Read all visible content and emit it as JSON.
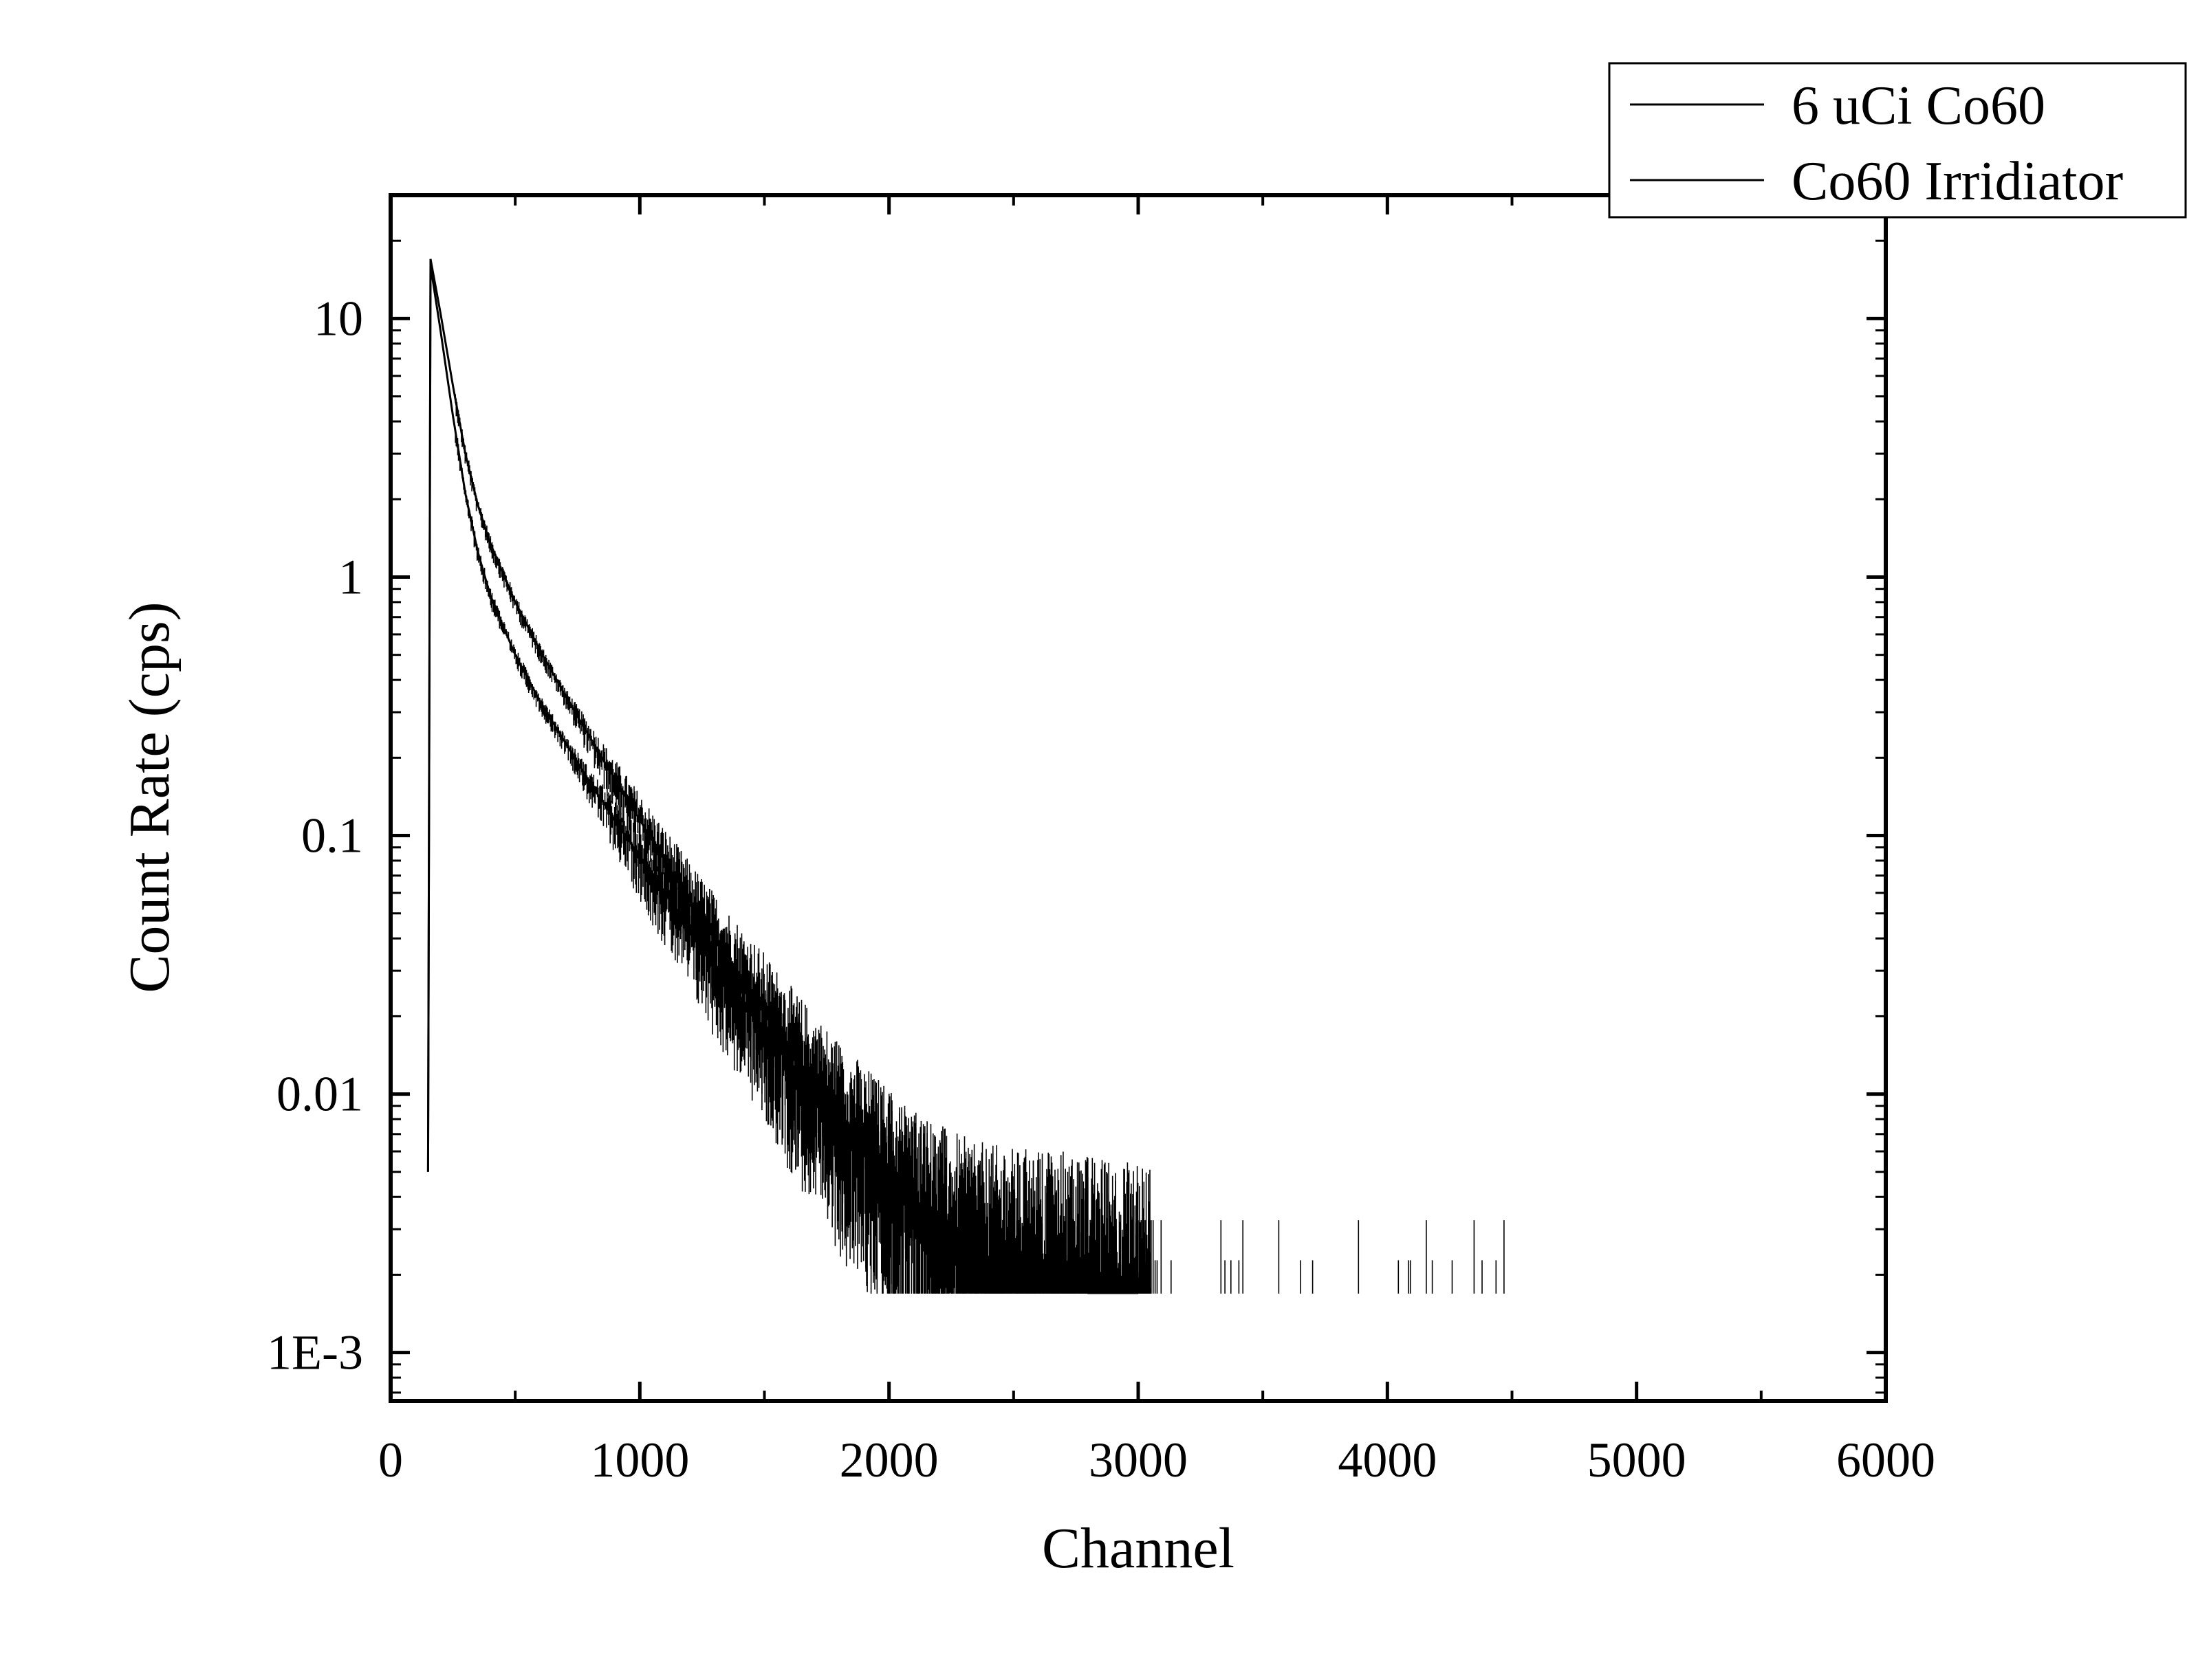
{
  "chart_data": {
    "type": "line",
    "title": "",
    "xlabel": "Channel",
    "ylabel": "Count Rate (cps)",
    "xlim": [
      0,
      6000
    ],
    "ylim": [
      0.00065,
      30
    ],
    "yscale": "log",
    "xticks": [
      0,
      1000,
      2000,
      3000,
      4000,
      5000,
      6000
    ],
    "xtick_labels": [
      "0",
      "1000",
      "2000",
      "3000",
      "4000",
      "5000",
      "6000"
    ],
    "yticks": [
      0.001,
      0.01,
      0.1,
      1,
      10
    ],
    "ytick_labels": [
      "1E-3",
      "0.01",
      "0.1",
      "1",
      "10"
    ],
    "legend_position": "top-right, above plot frame",
    "line_color": "#000000",
    "series": [
      {
        "name": "6 uCi Co60",
        "x": [
          150,
          160,
          200,
          250,
          300,
          350,
          400,
          500,
          600,
          700,
          800,
          900,
          1000,
          1100,
          1200,
          1300,
          1400,
          1500,
          1600,
          1700,
          1800,
          1900,
          2000,
          2100,
          2200,
          2300,
          2400,
          2500,
          2600,
          2700,
          2800,
          2900,
          3000
        ],
        "y": [
          0.005,
          17,
          10.5,
          5.5,
          3.0,
          1.9,
          1.35,
          0.8,
          0.52,
          0.35,
          0.24,
          0.165,
          0.115,
          0.08,
          0.056,
          0.04,
          0.029,
          0.021,
          0.015,
          0.011,
          0.0082,
          0.0062,
          0.0048,
          0.0038,
          0.0031,
          0.0026,
          0.0023,
          0.0021,
          0.002,
          0.0019,
          0.0018,
          0.0017,
          0.0017
        ]
      },
      {
        "name": "Co60 Irridiator",
        "x": [
          150,
          160,
          200,
          250,
          300,
          350,
          400,
          500,
          600,
          700,
          800,
          900,
          1000,
          1100,
          1200,
          1300,
          1400,
          1500,
          1600,
          1700,
          1800,
          1900,
          2000,
          2100,
          2200,
          2300,
          2400,
          2500,
          2600,
          2700,
          2800,
          2900,
          3000
        ],
        "y": [
          0.005,
          16,
          9.0,
          4.2,
          2.1,
          1.25,
          0.85,
          0.5,
          0.33,
          0.23,
          0.16,
          0.115,
          0.083,
          0.06,
          0.044,
          0.032,
          0.024,
          0.018,
          0.013,
          0.0098,
          0.0075,
          0.0058,
          0.0046,
          0.0037,
          0.003,
          0.0025,
          0.0022,
          0.002,
          0.0019,
          0.0018,
          0.0017,
          0.0017,
          0.0017
        ]
      }
    ]
  }
}
